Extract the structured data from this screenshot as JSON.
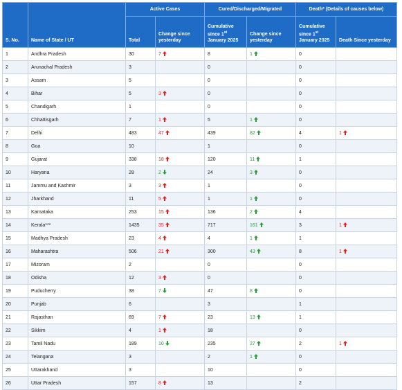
{
  "table": {
    "group_headers": [
      "Active Cases",
      "Cured/Discharged/Migrated",
      "Death* (Details of causes below)"
    ],
    "columns": [
      {
        "label": "S. No."
      },
      {
        "label": "Name of State / UT"
      },
      {
        "label": "Total"
      },
      {
        "label": "Change since yesterday",
        "arrow_colors": {
          "up": "#e0201c",
          "down": "#2a9a3a"
        }
      },
      {
        "label": {
          "before": "Cumulative since 1",
          "sup": "st",
          "after": "January 2025"
        }
      },
      {
        "label": "Change since yesterday",
        "arrow_colors": {
          "up": "#2a9a3a",
          "down": "#e0201c"
        }
      },
      {
        "label": {
          "before": "Cumulative since 1",
          "sup": "st",
          "after": "January 2025"
        }
      },
      {
        "label": "Death Since yesterday",
        "arrow_colors": {
          "up": "#e0201c",
          "down": "#2a9a3a"
        }
      }
    ],
    "rows": [
      [
        1,
        "Andhra Pradesh",
        30,
        {
          "count": 7,
          "trend": "up"
        },
        8,
        {
          "count": 1,
          "trend": "up"
        },
        0,
        null
      ],
      [
        2,
        "Arunachal Pradesh",
        3,
        null,
        0,
        null,
        0,
        null
      ],
      [
        3,
        "Assam",
        5,
        null,
        0,
        null,
        0,
        null
      ],
      [
        4,
        "Bihar",
        5,
        {
          "count": 3,
          "trend": "up"
        },
        0,
        null,
        0,
        null
      ],
      [
        5,
        "Chandigarh",
        1,
        null,
        0,
        null,
        0,
        null
      ],
      [
        6,
        "Chhattisgarh",
        7,
        {
          "count": 1,
          "trend": "up"
        },
        5,
        {
          "count": 1,
          "trend": "up"
        },
        0,
        null
      ],
      [
        7,
        "Delhi",
        483,
        {
          "count": 47,
          "trend": "up"
        },
        439,
        {
          "count": 82,
          "trend": "up"
        },
        4,
        {
          "count": 1,
          "trend": "up"
        }
      ],
      [
        8,
        "Goa",
        10,
        null,
        1,
        null,
        0,
        null
      ],
      [
        9,
        "Gujarat",
        338,
        {
          "count": 18,
          "trend": "up"
        },
        120,
        {
          "count": 11,
          "trend": "up"
        },
        1,
        null
      ],
      [
        10,
        "Haryana",
        28,
        {
          "count": 2,
          "trend": "down"
        },
        24,
        {
          "count": 3,
          "trend": "up"
        },
        0,
        null
      ],
      [
        11,
        "Jammu and Kashmir",
        3,
        {
          "count": 3,
          "trend": "up"
        },
        1,
        null,
        0,
        null
      ],
      [
        12,
        "Jharkhand",
        11,
        {
          "count": 5,
          "trend": "up"
        },
        1,
        {
          "count": 1,
          "trend": "up"
        },
        0,
        null
      ],
      [
        13,
        "Karnataka",
        253,
        {
          "count": 15,
          "trend": "up"
        },
        136,
        {
          "count": 2,
          "trend": "up"
        },
        4,
        null
      ],
      [
        14,
        "Kerala***",
        1435,
        {
          "count": 35,
          "trend": "up"
        },
        717,
        {
          "count": 161,
          "trend": "up"
        },
        3,
        {
          "count": 1,
          "trend": "up"
        }
      ],
      [
        15,
        "Madhya Pradesh",
        23,
        {
          "count": 4,
          "trend": "up"
        },
        4,
        {
          "count": 1,
          "trend": "up"
        },
        1,
        null
      ],
      [
        16,
        "Maharashtra",
        506,
        {
          "count": 21,
          "trend": "up"
        },
        300,
        {
          "count": 43,
          "trend": "up"
        },
        8,
        {
          "count": 1,
          "trend": "up"
        }
      ],
      [
        17,
        "Mizoram",
        2,
        null,
        0,
        null,
        0,
        null
      ],
      [
        18,
        "Odisha",
        12,
        {
          "count": 3,
          "trend": "up"
        },
        0,
        null,
        0,
        null
      ],
      [
        19,
        "Puducherry",
        38,
        {
          "count": 7,
          "trend": "down"
        },
        47,
        {
          "count": 8,
          "trend": "up"
        },
        0,
        null
      ],
      [
        20,
        "Punjab",
        6,
        null,
        3,
        null,
        1,
        null
      ],
      [
        21,
        "Rajasthan",
        69,
        {
          "count": 7,
          "trend": "up"
        },
        23,
        {
          "count": 13,
          "trend": "up"
        },
        1,
        null
      ],
      [
        22,
        "Sikkim",
        4,
        {
          "count": 1,
          "trend": "up"
        },
        18,
        null,
        0,
        null
      ],
      [
        23,
        "Tamil Nadu",
        189,
        {
          "count": 10,
          "trend": "down"
        },
        235,
        {
          "count": 27,
          "trend": "up"
        },
        2,
        {
          "count": 1,
          "trend": "up"
        }
      ],
      [
        24,
        "Telangana",
        3,
        null,
        2,
        {
          "count": 1,
          "trend": "up"
        },
        0,
        null
      ],
      [
        25,
        "Uttarakhand",
        3,
        null,
        10,
        null,
        0,
        null
      ],
      [
        26,
        "Uttar Pradesh",
        157,
        {
          "count": 8,
          "trend": "up"
        },
        13,
        null,
        2,
        null
      ]
    ]
  }
}
